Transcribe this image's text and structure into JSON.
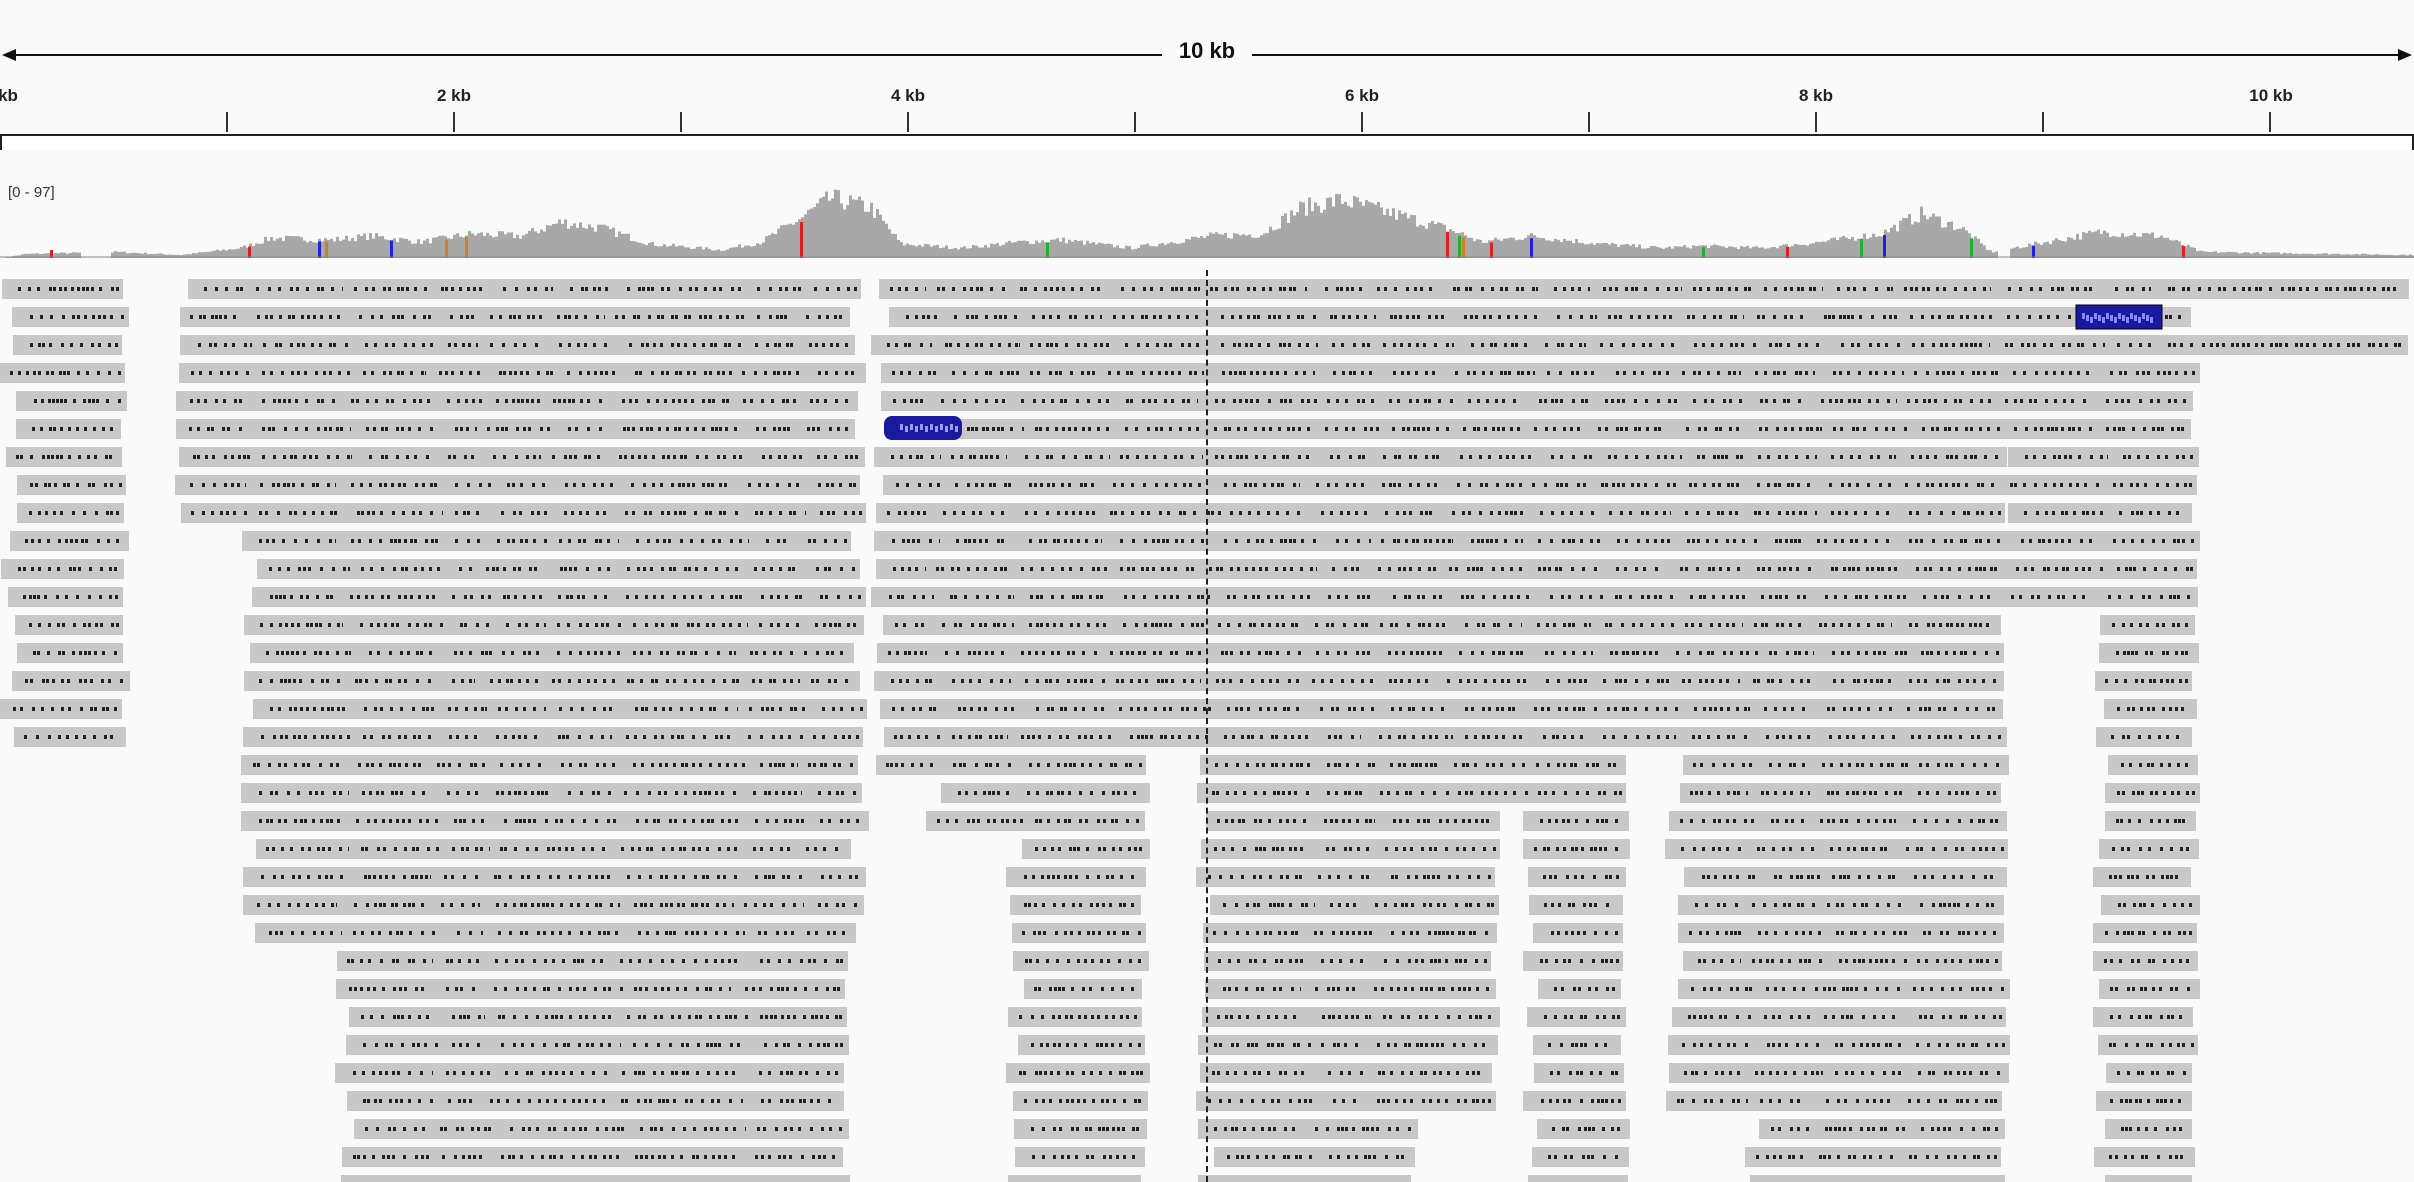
{
  "app": "IGV genome browser",
  "region": {
    "width_label": "10 kb"
  },
  "ruler": {
    "ticks": [
      {
        "label": "kb",
        "kb": 0
      },
      {
        "label": "2 kb",
        "kb": 2
      },
      {
        "label": "4 kb",
        "kb": 4
      },
      {
        "label": "6 kb",
        "kb": 6
      },
      {
        "label": "8 kb",
        "kb": 8
      },
      {
        "label": "10 kb",
        "kb": 10
      }
    ]
  },
  "coverage_track": {
    "range_label": "[0 - 97]",
    "max": 97
  },
  "colors": {
    "read": "#c8c8c8",
    "read_selected": "#1a1aa0",
    "coverage": "#a8a8a8",
    "mismatch_A": "#20b030",
    "mismatch_C": "#2020e0",
    "mismatch_G": "#d08020",
    "mismatch_T": "#e02020"
  }
}
